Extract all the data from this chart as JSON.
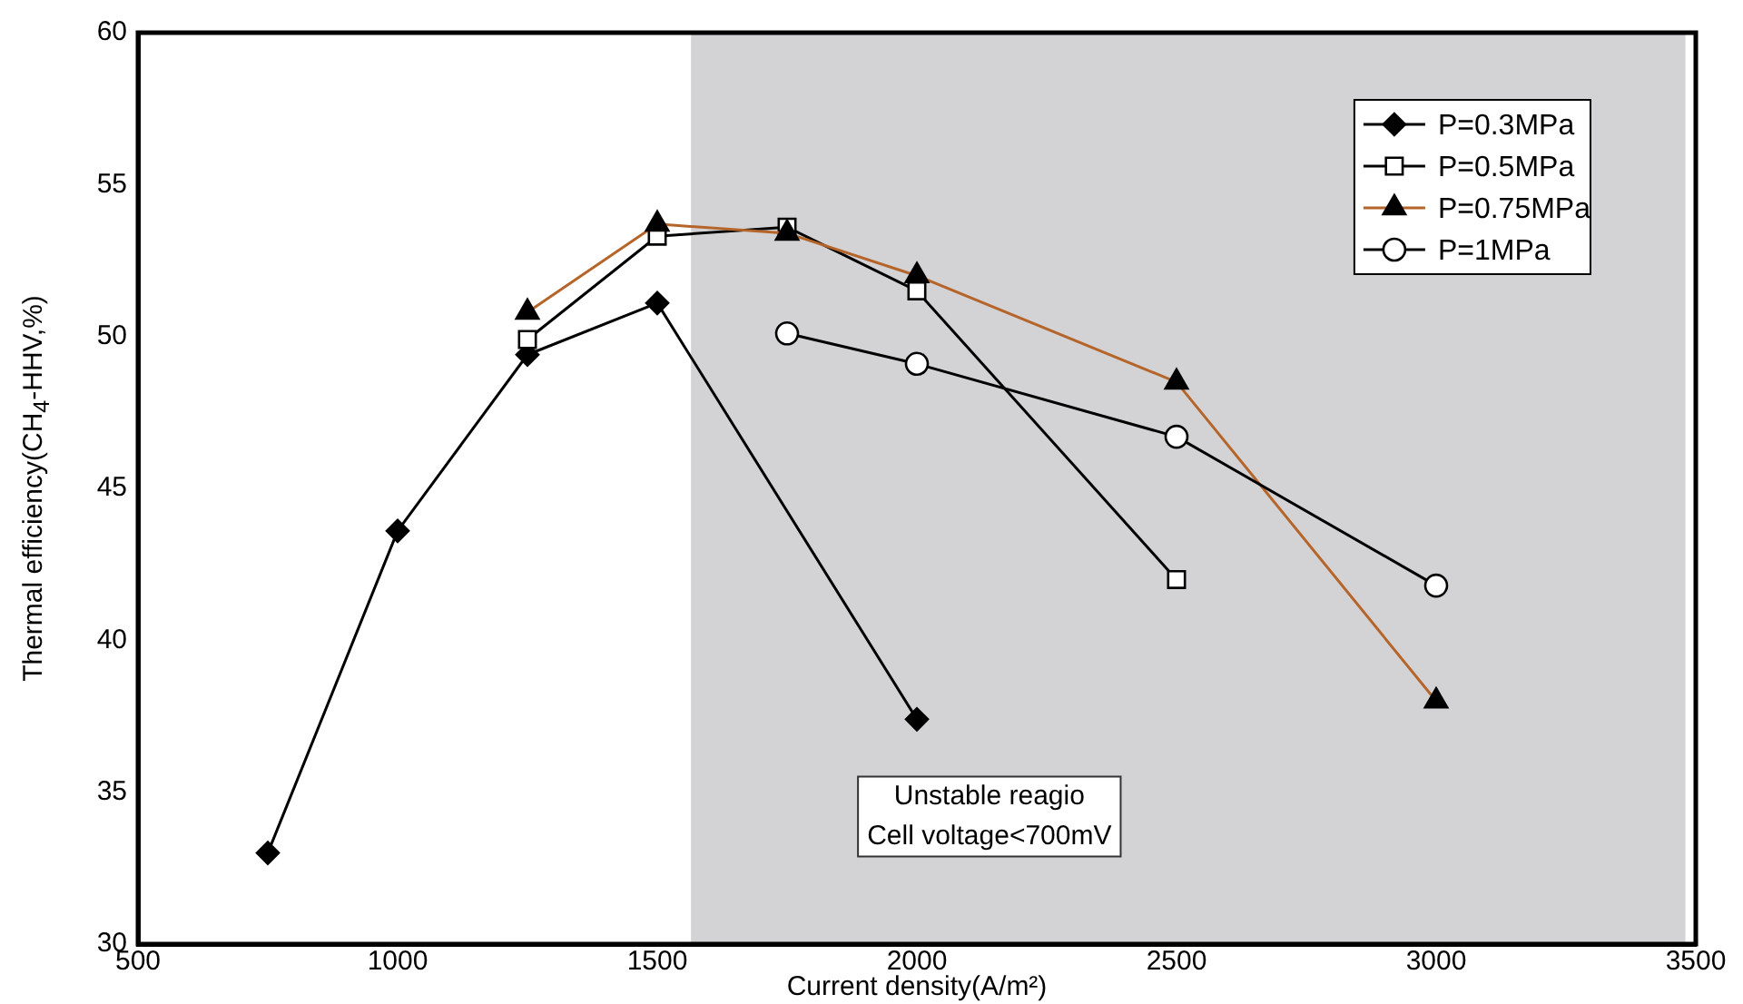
{
  "chart_data": {
    "type": "line",
    "xlabel": "Current density(A/m²)",
    "ylabel": "Thermal efficiency(CH$_{4}$-HHV,%)",
    "xlim": [
      500,
      3500
    ],
    "xticks": [
      500,
      1000,
      1500,
      2000,
      2500,
      3000,
      3500
    ],
    "ylim": [
      30,
      60
    ],
    "yticks": [
      30,
      35,
      40,
      45,
      50,
      55,
      60
    ],
    "grid": false,
    "legend": "top right",
    "series": [
      {
        "name": "P=0.3MPa",
        "color": "#000000",
        "marker": "diamond",
        "x": [
          750,
          1000,
          1250,
          1500,
          2000
        ],
        "values": [
          33.0,
          43.6,
          49.4,
          51.1,
          37.4
        ]
      },
      {
        "name": "P=0.5MPa",
        "color": "#000000",
        "marker": "square",
        "x": [
          1250,
          1500,
          1750,
          2000,
          2500
        ],
        "values": [
          49.9,
          53.3,
          53.6,
          51.5,
          42.0
        ]
      },
      {
        "name": "P=0.75MPa",
        "color": "#b5652a",
        "marker": "triangle",
        "x": [
          1250,
          1500,
          1750,
          2000,
          2500,
          3000
        ],
        "values": [
          50.8,
          53.7,
          53.4,
          52.0,
          48.5,
          38.0
        ]
      },
      {
        "name": "P=1MPa",
        "color": "#000000",
        "marker": "circle",
        "x": [
          1750,
          2000,
          2500,
          3000
        ],
        "values": [
          50.1,
          49.1,
          46.7,
          41.8
        ]
      }
    ],
    "bands": [
      {
        "axis": "x",
        "from": 1565,
        "to": 3480,
        "color": "#d3d3d6"
      }
    ],
    "annotations": [
      "Unstable reagio\nCell voltage<700mV"
    ]
  }
}
